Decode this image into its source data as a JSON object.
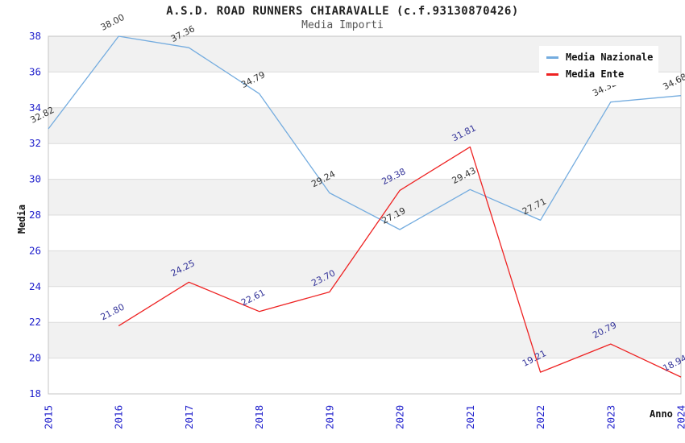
{
  "title": "A.S.D. ROAD RUNNERS CHIARAVALLE (c.f.93130870426)",
  "subtitle": "Media Importi",
  "chart_data": {
    "type": "line",
    "x": [
      2015,
      2016,
      2017,
      2018,
      2019,
      2020,
      2021,
      2022,
      2023,
      2024
    ],
    "xlabel": "Anno",
    "ylabel": "Media",
    "ylim": [
      18,
      38
    ],
    "ytick_step": 2,
    "yticks": [
      18,
      20,
      22,
      24,
      26,
      28,
      30,
      32,
      34,
      36,
      38
    ],
    "grid": "horizontal-alternating-bands",
    "legend_position": "top-right",
    "value_decimals": 2,
    "series": [
      {
        "name": "Media Nazionale",
        "color": "#74acdf",
        "label_color": "#333333",
        "values": [
          32.82,
          38.0,
          37.36,
          34.79,
          29.24,
          27.19,
          29.43,
          27.71,
          34.32,
          34.68
        ]
      },
      {
        "name": "Media Ente",
        "color": "#ee2222",
        "label_color": "#333399",
        "values": [
          null,
          21.8,
          24.25,
          22.61,
          23.7,
          29.38,
          31.81,
          19.21,
          20.79,
          18.94
        ]
      }
    ]
  },
  "colors": {
    "axis_tick": "#2121cc",
    "band_gray": "#f1f1f1",
    "band_white": "#ffffff",
    "grid_line": "#dcdcdc",
    "plot_border": "#c4c4c4",
    "background": "#ffffff"
  }
}
